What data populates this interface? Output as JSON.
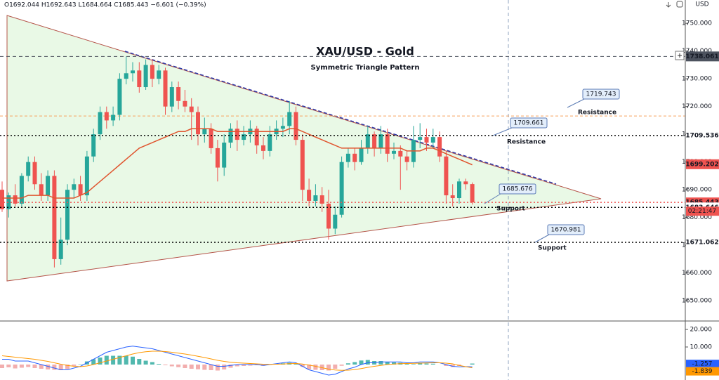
{
  "chart_data": {
    "type": "candlestick",
    "legend_text": "O1692.044 H1692.643 L1684.664 C1685.443 −6.601 (−0.39%)",
    "title": "XAU/USD - Gold",
    "subtitle": "Symmetric Triangle Pattern",
    "currency": "USD",
    "categories": [
      null,
      null,
      null,
      null,
      null,
      null,
      null,
      null,
      null,
      null,
      null,
      null,
      null,
      null,
      null,
      null,
      null,
      null,
      null,
      null,
      null,
      null,
      null,
      null,
      null,
      null,
      null,
      null,
      null,
      null,
      null,
      null,
      null,
      null,
      null,
      null,
      null,
      null,
      null,
      null,
      null,
      null,
      null,
      null,
      null,
      null,
      null,
      null,
      null,
      null,
      null,
      null,
      null,
      null,
      null,
      null,
      null,
      null,
      null,
      null,
      null,
      null,
      null,
      null,
      null,
      null,
      null,
      null,
      null,
      null,
      null,
      null,
      null
    ],
    "open": [
      1690,
      1683,
      1688,
      1685,
      1695,
      1700,
      1692,
      1688,
      1695,
      1665,
      1672,
      1690,
      1692,
      1688,
      1702,
      1710,
      1718,
      1715,
      1717,
      1730,
      1732,
      1733,
      1727,
      1735,
      1730,
      1733,
      1720,
      1727,
      1722,
      1720,
      1718,
      1710,
      1712,
      1705,
      1698,
      1707,
      1712,
      1708,
      1710,
      1712,
      1706,
      1704,
      1710,
      1712,
      1713,
      1718,
      1708,
      1690,
      1686,
      1688,
      1685,
      1676,
      1681,
      1700,
      1703,
      1700,
      1705,
      1710,
      1705,
      1710,
      1703,
      1704,
      1702,
      1700,
      1708,
      1709,
      1707,
      1709,
      1702,
      1688,
      1687,
      1693,
      1692.044
    ],
    "high": [
      1693,
      1689,
      1692,
      1696,
      1702,
      1702,
      1696,
      1697,
      1697,
      1680,
      1692,
      1694,
      1695,
      1704,
      1712,
      1720,
      1720,
      1720,
      1732,
      1738,
      1736,
      1736,
      1737,
      1737,
      1735,
      1734,
      1729,
      1729,
      1726,
      1723,
      1720,
      1716,
      1714,
      1708,
      1710,
      1714,
      1715,
      1713,
      1715,
      1713,
      1709,
      1713,
      1715,
      1716,
      1722,
      1720,
      1710,
      1694,
      1692,
      1691,
      1690,
      1684,
      1702,
      1705,
      1705,
      1708,
      1713,
      1711,
      1713,
      1712,
      1707,
      1706,
      1704,
      1713,
      1714,
      1712,
      1712,
      1711,
      1704,
      1692,
      1694,
      1694,
      1692.643
    ],
    "low": [
      1682,
      1680,
      1684,
      1684,
      1693,
      1690,
      1686,
      1686,
      1662,
      1663,
      1670,
      1687,
      1686,
      1686,
      1700,
      1708,
      1712,
      1713,
      1715,
      1728,
      1729,
      1725,
      1726,
      1727,
      1728,
      1717,
      1718,
      1719,
      1718,
      1708,
      1706,
      1707,
      1703,
      1693,
      1695,
      1705,
      1704,
      1706,
      1707,
      1703,
      1701,
      1702,
      1708,
      1709,
      1710,
      1706,
      1686,
      1684,
      1684,
      1682,
      1672,
      1674,
      1680,
      1698,
      1697,
      1699,
      1703,
      1702,
      1703,
      1700,
      1701,
      1690,
      1697,
      1698,
      1705,
      1704,
      1705,
      1700,
      1685,
      1684,
      1685,
      1690,
      1684.664
    ],
    "close": [
      1683,
      1688,
      1685,
      1695,
      1700,
      1692,
      1688,
      1695,
      1665,
      1672,
      1690,
      1692,
      1688,
      1702,
      1710,
      1718,
      1715,
      1717,
      1730,
      1732,
      1733,
      1727,
      1735,
      1730,
      1733,
      1720,
      1727,
      1722,
      1720,
      1718,
      1710,
      1712,
      1705,
      1698,
      1707,
      1712,
      1708,
      1710,
      1712,
      1706,
      1704,
      1710,
      1712,
      1713,
      1718,
      1708,
      1690,
      1686,
      1688,
      1685,
      1676,
      1681,
      1700,
      1703,
      1700,
      1705,
      1710,
      1705,
      1710,
      1703,
      1704,
      1702,
      1700,
      1708,
      1709,
      1707,
      1709,
      1702,
      1688,
      1687,
      1693,
      1692,
      1685.443
    ],
    "up_color": "#26a69a",
    "down_color": "#ef5350",
    "ylim": [
      1642.7,
      1758.4
    ],
    "yticks": [
      {
        "value": 1650,
        "label": "1650.000"
      },
      {
        "value": 1660,
        "label": "1660.000"
      },
      {
        "value": 1670,
        "label": "1670.000"
      },
      {
        "value": 1680,
        "label": "1680.000"
      },
      {
        "value": 1690,
        "label": "1690.000"
      },
      {
        "value": 1700,
        "label": "1700.000"
      },
      {
        "value": 1710,
        "label": "1710.000"
      },
      {
        "value": 1720,
        "label": "1720.000"
      },
      {
        "value": 1730,
        "label": "1730.000"
      },
      {
        "value": 1740,
        "label": "1740.000"
      },
      {
        "value": 1750,
        "label": "1750.000"
      }
    ],
    "ma": {
      "color": "#e0552f",
      "values": [
        1687,
        1687,
        1687,
        1687,
        1688,
        1688,
        1688,
        1688,
        1687,
        1687,
        1687,
        1687,
        1688,
        1689,
        1691,
        1693,
        1695,
        1697,
        1699,
        1701,
        1703,
        1705,
        1706,
        1707,
        1708,
        1709,
        1710,
        1711,
        1711,
        1712,
        1712,
        1712,
        1712,
        1711,
        1711,
        1711,
        1711,
        1711,
        1711,
        1711,
        1711,
        1711,
        1711,
        1711,
        1712,
        1712,
        1711,
        1710,
        1709,
        1708,
        1707,
        1706,
        1705,
        1705,
        1705,
        1705,
        1705,
        1705,
        1705,
        1705,
        1705,
        1705,
        1704,
        1704,
        1704,
        1705,
        1705,
        1704,
        1703,
        1702,
        1701,
        1700,
        1699
      ]
    },
    "reference_line": {
      "value": 1716.6,
      "color": "#f7a35c"
    },
    "levels": [
      {
        "value": 1738.061,
        "color": "#4c525e",
        "badge": "filled",
        "line": "dashed"
      },
      {
        "value": 1709.536,
        "color": "#000000",
        "badge": "plain",
        "line": "dotted"
      },
      {
        "value": 1699.202,
        "color": "#ef5350",
        "badge": "filled",
        "line": "none"
      },
      {
        "value": 1685.443,
        "color": "#ef5350",
        "badge": "filled",
        "line": "dotted"
      },
      {
        "value": 1683.646,
        "color": "#000000",
        "badge": "plain",
        "line": "dotted"
      },
      {
        "value": 1671.062,
        "color": "#000000",
        "badge": "plain",
        "line": "dotted"
      }
    ],
    "countdown": "02:21:47",
    "callouts": [
      {
        "value": 1719.743,
        "text": "Resistance"
      },
      {
        "value": 1709.661,
        "text": "Resistance"
      },
      {
        "value": 1685.676,
        "text": "Support"
      },
      {
        "value": 1670.981,
        "text": "Support"
      }
    ],
    "macd": {
      "ylim": [
        -8.8,
        24.8
      ],
      "yticks": [
        {
          "value": 10,
          "label": "10.000"
        },
        {
          "value": 20,
          "label": "20.000"
        }
      ],
      "histogram": {
        "up_color": "#26a69a",
        "down_color": "#ef9a9a",
        "values": [
          -2,
          -1.6,
          -2.2,
          -1.8,
          -1.4,
          -2,
          -2.4,
          -2.8,
          -3,
          -3.2,
          -2.5,
          -1,
          0.2,
          1.8,
          3,
          4,
          5,
          5,
          5,
          5,
          4.5,
          3.2,
          2.2,
          1.4,
          0.4,
          -0.4,
          -1,
          -1.5,
          -2,
          -2.4,
          -2.7,
          -3,
          -3.2,
          -3.4,
          -2.8,
          -1.8,
          -1,
          -0.8,
          -0.6,
          -0.4,
          -0.7,
          -0.1,
          0.3,
          0.7,
          1,
          0.4,
          -1.3,
          -2.7,
          -3,
          -3.2,
          -3.4,
          -2.4,
          -0.7,
          0.7,
          1.4,
          2.3,
          2.6,
          2,
          2,
          1.5,
          1.2,
          1,
          0.4,
          0.3,
          0.7,
          0.6,
          0.5,
          0,
          -0.8,
          -1.4,
          -0.8,
          0,
          0.582
        ]
      },
      "series": [
        {
          "color": "#2962ff",
          "values": [
            3,
            3,
            2,
            2,
            2,
            1,
            0,
            -1,
            -2,
            -3,
            -3,
            -2,
            -1,
            1,
            3,
            5,
            7,
            8,
            9,
            10,
            10.5,
            10,
            9.5,
            9,
            8,
            7,
            6,
            5,
            4,
            3,
            2,
            1,
            0,
            -1,
            -1,
            -0.5,
            0,
            0,
            0,
            0,
            -0.5,
            0,
            0.5,
            1,
            1.5,
            1,
            -1,
            -3,
            -4,
            -5,
            -6,
            -5.5,
            -4,
            -2.5,
            -1.5,
            0,
            1,
            1,
            1.5,
            1.5,
            1.5,
            1.5,
            1,
            1,
            1.5,
            1.5,
            1.5,
            1,
            0,
            -1,
            -1.3,
            -1.2,
            -1.257
          ]
        },
        {
          "color": "#ff9800",
          "values": [
            5,
            4.6,
            4.2,
            3.8,
            3.4,
            3,
            2.4,
            1.8,
            1,
            0.2,
            -0.5,
            -1,
            -1.2,
            -0.8,
            0,
            1,
            2,
            3,
            4,
            5,
            6,
            6.8,
            7.3,
            7.6,
            7.6,
            7.4,
            7,
            6.5,
            6,
            5.4,
            4.7,
            4,
            3.2,
            2.4,
            1.8,
            1.3,
            1,
            0.8,
            0.6,
            0.4,
            0.2,
            0.1,
            0.2,
            0.3,
            0.5,
            0.6,
            0.3,
            -0.3,
            -1,
            -1.8,
            -2.6,
            -3.1,
            -3.3,
            -3.2,
            -2.9,
            -2.3,
            -1.6,
            -1,
            -0.5,
            0,
            0.3,
            0.5,
            0.6,
            0.7,
            0.8,
            0.9,
            1,
            1,
            0.8,
            0.4,
            -0.5,
            -1.2,
            -1.839
          ]
        }
      ]
    }
  }
}
